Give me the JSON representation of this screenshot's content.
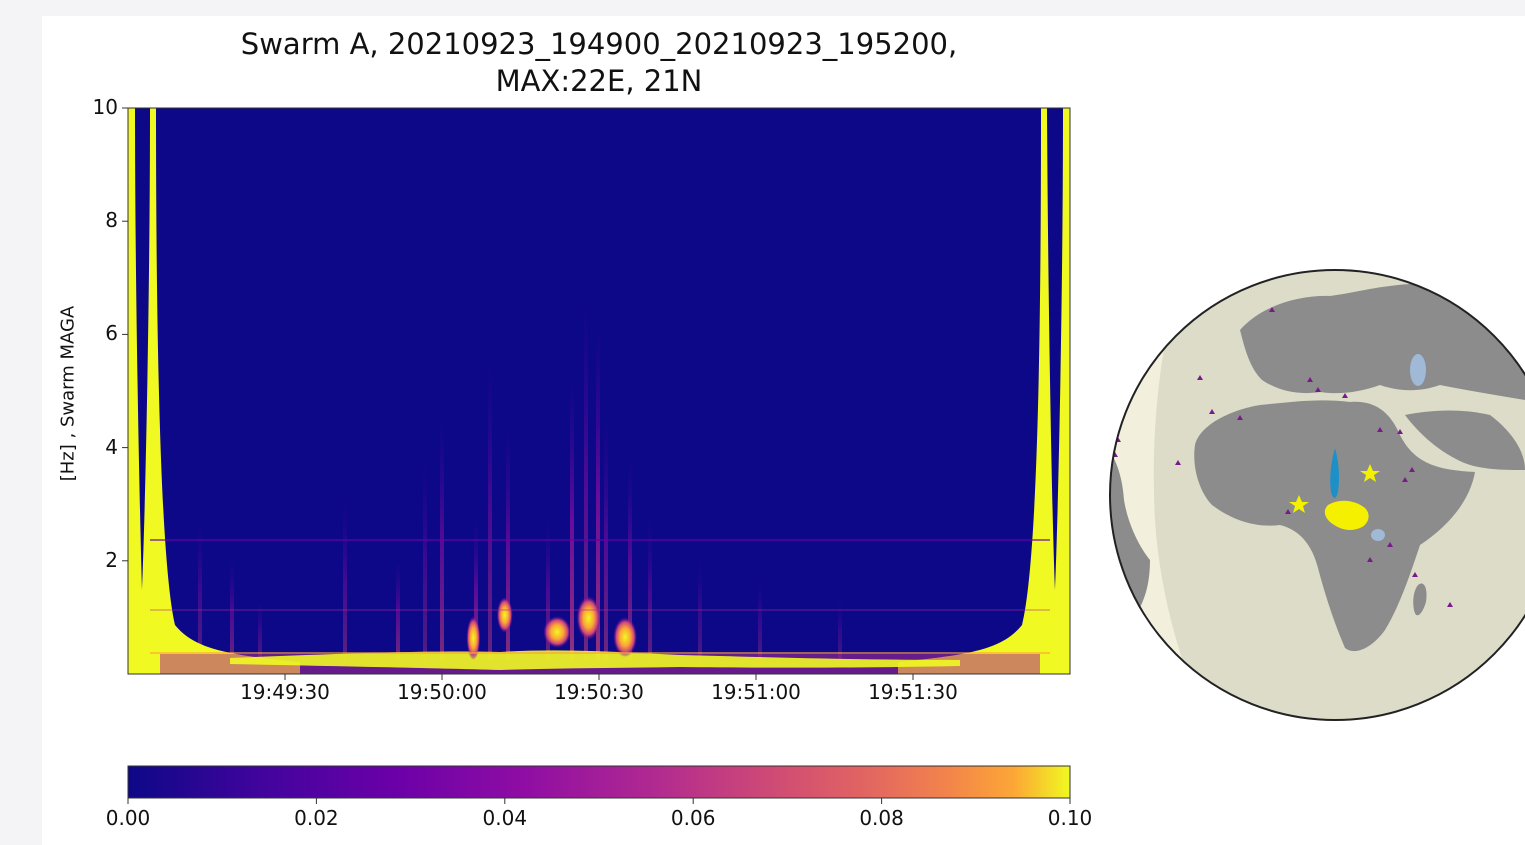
{
  "chart_data": {
    "type": "heatmap",
    "title_line1": "Swarm A, 20210923_194900_20210923_195200,",
    "title_line2": "MAX:22E, 21N",
    "ylabel": "[Hz] , Swarm MAGA",
    "ylim": [
      0,
      10
    ],
    "y_ticks": [
      "2",
      "4",
      "6",
      "8",
      "10"
    ],
    "x_ticks": [
      "19:49:30",
      "19:50:00",
      "19:50:30",
      "19:51:00",
      "19:51:30"
    ],
    "colorbar": {
      "range": [
        0.0,
        0.1
      ],
      "ticks": [
        "0.00",
        "0.02",
        "0.04",
        "0.06",
        "0.08",
        "0.10"
      ],
      "colormap": "plasma"
    },
    "hotspots_time": [
      "19:50:06",
      "19:50:12",
      "19:50:22",
      "19:50:28",
      "19:50:35"
    ],
    "grid": false
  },
  "colors": {
    "background": "#0d0887",
    "saturated": "#f0f921",
    "ocean": "#dcdcc8",
    "land": "#8c8c8c",
    "lakes": "#9fb9d6",
    "markers": "#7a1a8a",
    "event": "#f5f000"
  },
  "map": {
    "projection": "orthographic",
    "center": "Africa / Europe"
  }
}
